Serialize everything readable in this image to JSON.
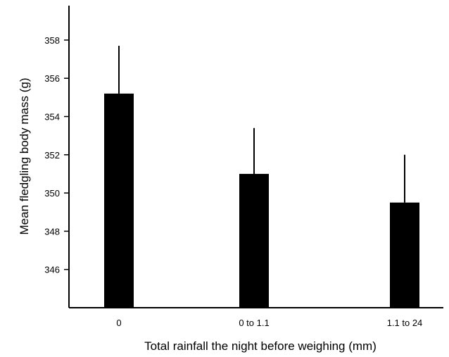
{
  "chart_data": {
    "type": "bar",
    "title": "",
    "xlabel": "Total rainfall the night before weighing (mm)",
    "ylabel": "Mean fledgling body mass (g)",
    "categories": [
      "0",
      "0 to 1.1",
      "1.1 to 24"
    ],
    "values": [
      355.2,
      351.0,
      349.5
    ],
    "error_upper": [
      357.7,
      353.4,
      352.0
    ],
    "ylim": [
      344,
      359.8
    ],
    "yticks": [
      346,
      348,
      350,
      352,
      354,
      356,
      358
    ],
    "bar_color": "#000000",
    "grid": false,
    "legend": "none"
  }
}
